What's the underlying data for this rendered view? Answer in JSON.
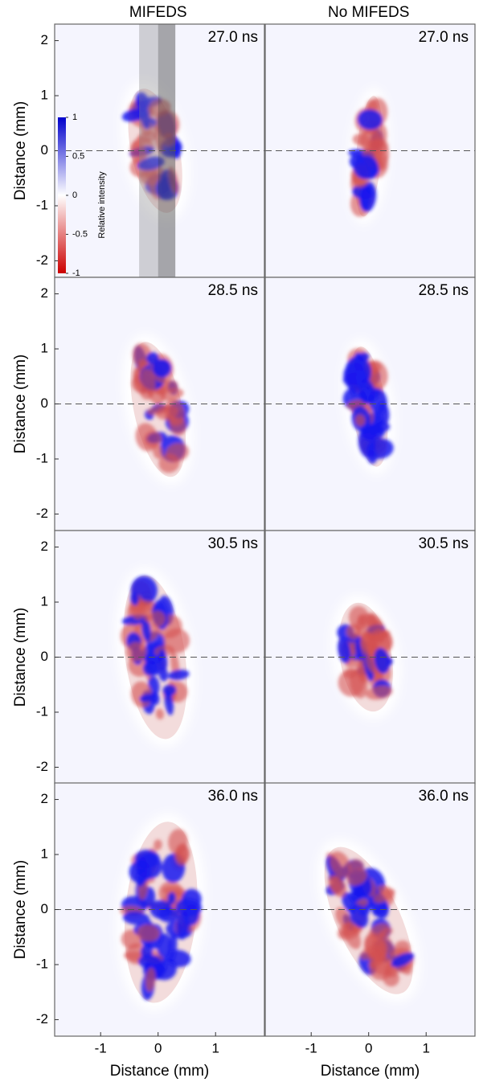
{
  "figure": {
    "column_titles": [
      "MIFEDS",
      "No MIFEDS"
    ],
    "x_label": "Distance (mm)",
    "y_label": "Distance (mm)",
    "xlim": [
      -1.8,
      1.85
    ],
    "ylim": [
      -2.3,
      2.3
    ],
    "xticks": [
      -1,
      0,
      1
    ],
    "yticks": [
      -2,
      -1,
      0,
      1,
      2
    ],
    "panels": [
      [
        "27.0 ns",
        "27.0 ns"
      ],
      [
        "28.5 ns",
        "28.5 ns"
      ],
      [
        "30.5 ns",
        "30.5 ns"
      ],
      [
        "36.0 ns",
        "36.0 ns"
      ]
    ],
    "colorbar": {
      "label": "Relative intensity",
      "range": [
        -1,
        1
      ],
      "ticks": [
        1,
        0.5,
        0,
        -0.5,
        -1
      ]
    }
  }
}
